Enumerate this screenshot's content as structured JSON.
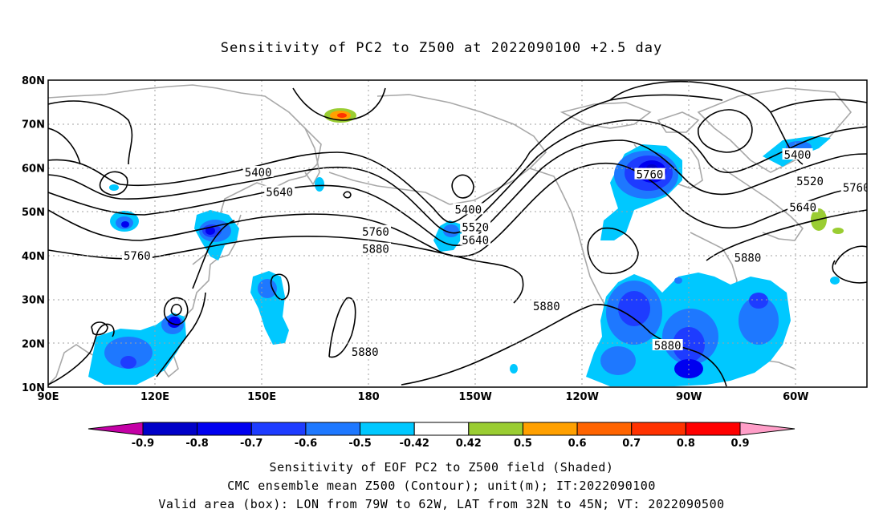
{
  "title": "Sensitivity of PC2 to Z500 at 2022090100 +2.5 day",
  "map": {
    "lat_labels": [
      "80N",
      "70N",
      "60N",
      "50N",
      "40N",
      "30N",
      "20N",
      "10N"
    ],
    "lat_values": [
      80,
      70,
      60,
      50,
      40,
      30,
      20,
      10
    ],
    "lon_labels": [
      "90E",
      "120E",
      "150E",
      "180",
      "150W",
      "120W",
      "90W",
      "60W"
    ],
    "lon_values": [
      90,
      120,
      150,
      180,
      210,
      240,
      270,
      300
    ],
    "lon_range": [
      90,
      320
    ],
    "lat_range": [
      10,
      80
    ],
    "grid": "dotted",
    "contour_labels": [
      {
        "text": "5400",
        "lon": 149.0,
        "lat": 59.0
      },
      {
        "text": "5640",
        "lon": 155.0,
        "lat": 54.5
      },
      {
        "text": "5760",
        "lon": 115.0,
        "lat": 40.0
      },
      {
        "text": "5760",
        "lon": 182.0,
        "lat": 45.5
      },
      {
        "text": "5880",
        "lon": 182.0,
        "lat": 41.5
      },
      {
        "text": "5400",
        "lon": 208.0,
        "lat": 50.5
      },
      {
        "text": "5520",
        "lon": 210.0,
        "lat": 46.5
      },
      {
        "text": "5640",
        "lon": 210.0,
        "lat": 43.5
      },
      {
        "text": "5880",
        "lon": 179.0,
        "lat": 18.0
      },
      {
        "text": "5880",
        "lon": 230.0,
        "lat": 28.5
      },
      {
        "text": "5760",
        "lon": 259.0,
        "lat": 58.5
      },
      {
        "text": "5880",
        "lon": 264.0,
        "lat": 19.5
      },
      {
        "text": "5880",
        "lon": 286.5,
        "lat": 39.5
      },
      {
        "text": "5400",
        "lon": 300.5,
        "lat": 63.0
      },
      {
        "text": "5520",
        "lon": 304.0,
        "lat": 57.0
      },
      {
        "text": "5640",
        "lon": 302.0,
        "lat": 51.0
      },
      {
        "text": "5760",
        "lon": 317.0,
        "lat": 55.5
      }
    ],
    "valid_box": {
      "lon_from": 281,
      "lon_to": 298,
      "lat_from": 32,
      "lat_to": 45
    }
  },
  "colorbar": {
    "tick_labels": [
      "-0.9",
      "-0.8",
      "-0.7",
      "-0.6",
      "-0.5",
      "-0.42",
      "0.42",
      "0.5",
      "0.6",
      "0.7",
      "0.8",
      "0.9"
    ],
    "colors": [
      "#c400a6",
      "#0000c8",
      "#0000f0",
      "#1e3cff",
      "#1e78ff",
      "#00c8ff",
      "#ffffff",
      "#9acd32",
      "#ffa000",
      "#ff6400",
      "#ff3200",
      "#ff0000",
      "#ff9ec8"
    ]
  },
  "captions": {
    "line1": "Sensitivity of EOF PC2 to Z500 field (Shaded)",
    "line2": "CMC ensemble mean Z500 (Contour); unit(m); IT:2022090100",
    "line3": "Valid area (box): LON from 79W to 62W, LAT from 32N to 45N; VT: 2022090500"
  }
}
